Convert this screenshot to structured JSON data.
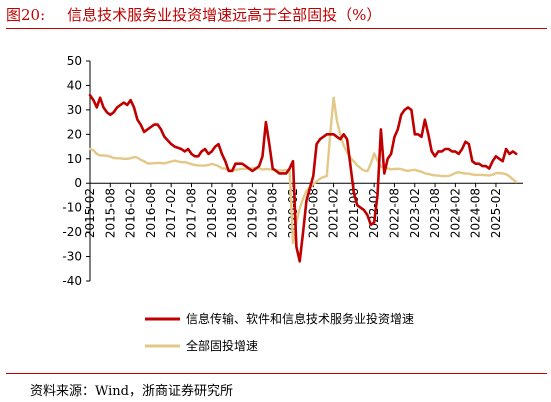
{
  "header": {
    "figure_number": "图20:",
    "title": "信息技术服务业投资增速远高于全部固投（%）"
  },
  "footer": {
    "source": "资料来源：Wind，浙商证券研究所"
  },
  "colors": {
    "accent": "#c00000",
    "series_it": "#c00000",
    "series_fai": "#e3c887"
  },
  "chart_data": {
    "type": "line",
    "ylim": [
      -40,
      50
    ],
    "yticks": [
      50,
      40,
      30,
      20,
      10,
      0,
      -10,
      -20,
      -30,
      -40
    ],
    "xlim": [
      "2015-02",
      "2025-10"
    ],
    "xticks": [
      "2015-02",
      "2015-08",
      "2016-02",
      "2016-08",
      "2017-02",
      "2017-08",
      "2018-02",
      "2018-08",
      "2019-02",
      "2019-08",
      "2020-02",
      "2020-08",
      "2021-02",
      "2021-08",
      "2022-02",
      "2022-08",
      "2023-02",
      "2023-08",
      "2024-02",
      "2024-08",
      "2025-02"
    ],
    "legend_position": "bottom",
    "series": [
      {
        "name": "信息传输、软件和信息技术服务业投资增速",
        "color": "#c00000",
        "points": [
          [
            "2015-02",
            36
          ],
          [
            "2015-03",
            34
          ],
          [
            "2015-04",
            31
          ],
          [
            "2015-05",
            35
          ],
          [
            "2015-06",
            31
          ],
          [
            "2015-07",
            29
          ],
          [
            "2015-08",
            28
          ],
          [
            "2015-09",
            29
          ],
          [
            "2015-10",
            31
          ],
          [
            "2015-11",
            32
          ],
          [
            "2015-12",
            33
          ],
          [
            "2016-01",
            32
          ],
          [
            "2016-02",
            34
          ],
          [
            "2016-03",
            31
          ],
          [
            "2016-04",
            26
          ],
          [
            "2016-05",
            24
          ],
          [
            "2016-06",
            21
          ],
          [
            "2016-07",
            22
          ],
          [
            "2016-08",
            23
          ],
          [
            "2016-09",
            24
          ],
          [
            "2016-10",
            24
          ],
          [
            "2016-11",
            22
          ],
          [
            "2016-12",
            19
          ],
          [
            "2017-02",
            16
          ],
          [
            "2017-03",
            15
          ],
          [
            "2017-05",
            14
          ],
          [
            "2017-06",
            13
          ],
          [
            "2017-07",
            14
          ],
          [
            "2017-08",
            12
          ],
          [
            "2017-09",
            11
          ],
          [
            "2017-10",
            11
          ],
          [
            "2017-11",
            13
          ],
          [
            "2017-12",
            14
          ],
          [
            "2018-01",
            12
          ],
          [
            "2018-02",
            13
          ],
          [
            "2018-03",
            15
          ],
          [
            "2018-04",
            16
          ],
          [
            "2018-05",
            12
          ],
          [
            "2018-06",
            9
          ],
          [
            "2018-07",
            5
          ],
          [
            "2018-08",
            5
          ],
          [
            "2018-09",
            8
          ],
          [
            "2018-10",
            8
          ],
          [
            "2018-11",
            8
          ],
          [
            "2018-12",
            7
          ],
          [
            "2019-02",
            5
          ],
          [
            "2019-03",
            6
          ],
          [
            "2019-04",
            7
          ],
          [
            "2019-05",
            11
          ],
          [
            "2019-06",
            25
          ],
          [
            "2019-07",
            16
          ],
          [
            "2019-08",
            6
          ],
          [
            "2019-09",
            5
          ],
          [
            "2019-10",
            4
          ],
          [
            "2019-11",
            4
          ],
          [
            "2019-12",
            4
          ],
          [
            "2020-01",
            6
          ],
          [
            "2020-02",
            9
          ],
          [
            "2020-03",
            -26
          ],
          [
            "2020-04",
            -32
          ],
          [
            "2020-05",
            -20
          ],
          [
            "2020-06",
            -7
          ],
          [
            "2020-07",
            -2
          ],
          [
            "2020-08",
            3
          ],
          [
            "2020-09",
            16
          ],
          [
            "2020-10",
            18
          ],
          [
            "2020-11",
            19
          ],
          [
            "2020-12",
            20
          ],
          [
            "2021-01",
            20
          ],
          [
            "2021-02",
            20
          ],
          [
            "2021-03",
            19
          ],
          [
            "2021-04",
            18
          ],
          [
            "2021-05",
            20
          ],
          [
            "2021-06",
            18
          ],
          [
            "2021-07",
            7
          ],
          [
            "2021-08",
            -4
          ],
          [
            "2021-09",
            -9
          ],
          [
            "2021-10",
            -10
          ],
          [
            "2021-11",
            -11
          ],
          [
            "2021-12",
            -13
          ],
          [
            "2022-01",
            -17
          ],
          [
            "2022-02",
            -16
          ],
          [
            "2022-03",
            -5
          ],
          [
            "2022-04",
            22
          ],
          [
            "2022-05",
            4
          ],
          [
            "2022-06",
            10
          ],
          [
            "2022-07",
            12
          ],
          [
            "2022-08",
            19
          ],
          [
            "2022-09",
            22
          ],
          [
            "2022-10",
            28
          ],
          [
            "2022-11",
            30
          ],
          [
            "2022-12",
            31
          ],
          [
            "2023-01",
            30
          ],
          [
            "2023-02",
            20
          ],
          [
            "2023-03",
            20
          ],
          [
            "2023-04",
            19
          ],
          [
            "2023-05",
            26
          ],
          [
            "2023-06",
            20
          ],
          [
            "2023-07",
            13
          ],
          [
            "2023-08",
            11
          ],
          [
            "2023-09",
            13
          ],
          [
            "2023-10",
            13
          ],
          [
            "2023-11",
            14
          ],
          [
            "2023-12",
            14
          ],
          [
            "2024-01",
            13
          ],
          [
            "2024-02",
            13
          ],
          [
            "2024-03",
            12
          ],
          [
            "2024-04",
            14
          ],
          [
            "2024-05",
            17
          ],
          [
            "2024-06",
            16
          ],
          [
            "2024-07",
            9
          ],
          [
            "2024-08",
            8
          ],
          [
            "2024-09",
            8
          ],
          [
            "2024-10",
            7
          ],
          [
            "2024-11",
            7
          ],
          [
            "2024-12",
            6
          ],
          [
            "2025-01",
            9
          ],
          [
            "2025-02",
            11
          ],
          [
            "2025-03",
            10
          ],
          [
            "2025-04",
            9
          ],
          [
            "2025-05",
            14
          ],
          [
            "2025-06",
            12
          ],
          [
            "2025-07",
            13
          ],
          [
            "2025-08",
            12
          ]
        ]
      },
      {
        "name": "全部固投增速",
        "color": "#e3c887",
        "points": [
          [
            "2015-02",
            14
          ],
          [
            "2015-03",
            13.5
          ],
          [
            "2015-04",
            12
          ],
          [
            "2015-05",
            11.4
          ],
          [
            "2015-06",
            11.4
          ],
          [
            "2015-07",
            11.2
          ],
          [
            "2015-08",
            10.9
          ],
          [
            "2015-09",
            10.3
          ],
          [
            "2015-10",
            10.2
          ],
          [
            "2015-11",
            10.2
          ],
          [
            "2015-12",
            10
          ],
          [
            "2016-01",
            10
          ],
          [
            "2016-02",
            10.2
          ],
          [
            "2016-03",
            10.7
          ],
          [
            "2016-04",
            10.5
          ],
          [
            "2016-05",
            9.6
          ],
          [
            "2016-06",
            9
          ],
          [
            "2016-07",
            8.1
          ],
          [
            "2016-08",
            8.1
          ],
          [
            "2016-09",
            8.2
          ],
          [
            "2016-10",
            8.3
          ],
          [
            "2016-11",
            8.3
          ],
          [
            "2016-12",
            8.1
          ],
          [
            "2017-02",
            8.9
          ],
          [
            "2017-03",
            9.2
          ],
          [
            "2017-04",
            8.9
          ],
          [
            "2017-05",
            8.6
          ],
          [
            "2017-06",
            8.6
          ],
          [
            "2017-07",
            8.3
          ],
          [
            "2017-08",
            7.8
          ],
          [
            "2017-09",
            7.5
          ],
          [
            "2017-10",
            7.3
          ],
          [
            "2017-11",
            7.2
          ],
          [
            "2017-12",
            7.2
          ],
          [
            "2018-01",
            7.4
          ],
          [
            "2018-02",
            7.9
          ],
          [
            "2018-03",
            7.5
          ],
          [
            "2018-04",
            7
          ],
          [
            "2018-05",
            6.1
          ],
          [
            "2018-06",
            6
          ],
          [
            "2018-07",
            5.5
          ],
          [
            "2018-08",
            5.3
          ],
          [
            "2018-09",
            5.4
          ],
          [
            "2018-10",
            5.7
          ],
          [
            "2018-11",
            5.9
          ],
          [
            "2018-12",
            5.9
          ],
          [
            "2019-02",
            6.1
          ],
          [
            "2019-03",
            6.3
          ],
          [
            "2019-04",
            6.1
          ],
          [
            "2019-05",
            5.6
          ],
          [
            "2019-06",
            5.8
          ],
          [
            "2019-07",
            5.7
          ],
          [
            "2019-08",
            5.5
          ],
          [
            "2019-09",
            5.4
          ],
          [
            "2019-10",
            5.2
          ],
          [
            "2019-11",
            5.2
          ],
          [
            "2019-12",
            5.4
          ],
          [
            "2020-01",
            5.4
          ],
          [
            "2020-02",
            -24.5
          ],
          [
            "2020-03",
            -16.1
          ],
          [
            "2020-04",
            -10.3
          ],
          [
            "2020-05",
            -6.3
          ],
          [
            "2020-06",
            -3.1
          ],
          [
            "2020-07",
            -1.6
          ],
          [
            "2020-08",
            -0.3
          ],
          [
            "2020-09",
            0.8
          ],
          [
            "2020-10",
            1.8
          ],
          [
            "2020-11",
            2.6
          ],
          [
            "2020-12",
            2.9
          ],
          [
            "2021-01",
            20
          ],
          [
            "2021-02",
            35
          ],
          [
            "2021-03",
            25.6
          ],
          [
            "2021-04",
            19.9
          ],
          [
            "2021-05",
            15.4
          ],
          [
            "2021-06",
            12.6
          ],
          [
            "2021-07",
            10.3
          ],
          [
            "2021-08",
            8.9
          ],
          [
            "2021-09",
            7.3
          ],
          [
            "2021-10",
            6.1
          ],
          [
            "2021-11",
            5.2
          ],
          [
            "2021-12",
            4.9
          ],
          [
            "2022-01",
            8
          ],
          [
            "2022-02",
            12.2
          ],
          [
            "2022-03",
            9.3
          ],
          [
            "2022-04",
            6.8
          ],
          [
            "2022-05",
            6.2
          ],
          [
            "2022-06",
            6.1
          ],
          [
            "2022-07",
            5.7
          ],
          [
            "2022-08",
            5.8
          ],
          [
            "2022-09",
            5.9
          ],
          [
            "2022-10",
            5.8
          ],
          [
            "2022-11",
            5.3
          ],
          [
            "2022-12",
            5.1
          ],
          [
            "2023-01",
            5.3
          ],
          [
            "2023-02",
            5.5
          ],
          [
            "2023-03",
            5.1
          ],
          [
            "2023-04",
            4.7
          ],
          [
            "2023-05",
            4
          ],
          [
            "2023-06",
            3.8
          ],
          [
            "2023-07",
            3.4
          ],
          [
            "2023-08",
            3.2
          ],
          [
            "2023-09",
            3.1
          ],
          [
            "2023-10",
            2.9
          ],
          [
            "2023-11",
            2.9
          ],
          [
            "2023-12",
            3
          ],
          [
            "2024-01",
            3.5
          ],
          [
            "2024-02",
            4.2
          ],
          [
            "2024-03",
            4.5
          ],
          [
            "2024-04",
            4.2
          ],
          [
            "2024-05",
            4
          ],
          [
            "2024-06",
            3.9
          ],
          [
            "2024-07",
            3.6
          ],
          [
            "2024-08",
            3.4
          ],
          [
            "2024-09",
            3.4
          ],
          [
            "2024-10",
            3.4
          ],
          [
            "2024-11",
            3.3
          ],
          [
            "2024-12",
            3.2
          ],
          [
            "2025-01",
            3.5
          ],
          [
            "2025-02",
            4.1
          ],
          [
            "2025-03",
            4.2
          ],
          [
            "2025-04",
            4
          ],
          [
            "2025-05",
            3.7
          ],
          [
            "2025-06",
            2.8
          ],
          [
            "2025-07",
            1.6
          ],
          [
            "2025-08",
            0.5
          ]
        ]
      }
    ]
  }
}
